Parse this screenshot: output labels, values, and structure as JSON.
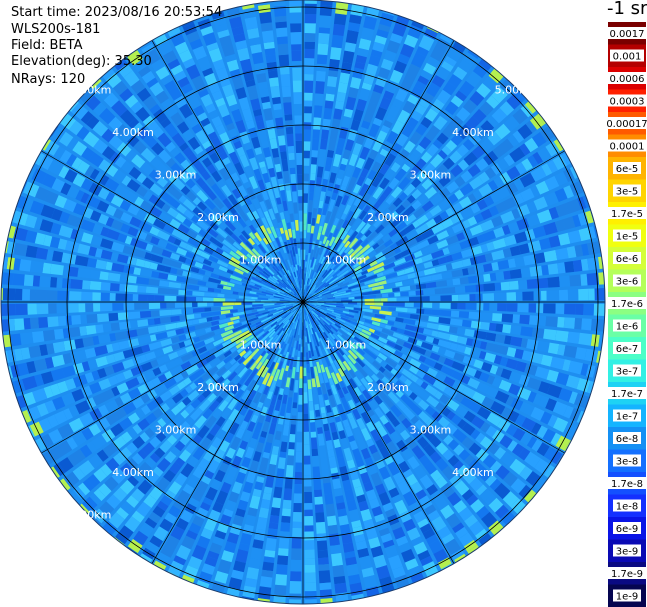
{
  "header": {
    "start_time": "Start time: 2023/08/16 20:53:54",
    "instrument": "WLS200s-181",
    "field": "Field: BETA",
    "elevation": "Elevation(deg): 35.30",
    "nrays": "NRays: 120"
  },
  "unit_label": "-1 sr",
  "range_ring_labels": [
    "1.00km",
    "2.00km",
    "3.00km",
    "4.00km",
    "5.00km"
  ],
  "colorbar": {
    "labels": [
      "0.0017",
      "0.001",
      "0.0006",
      "0.0003",
      "0.00017",
      "0.0001",
      "6e-5",
      "3e-5",
      "1.7e-5",
      "1e-5",
      "6e-6",
      "3e-6",
      "1.7e-6",
      "1e-6",
      "6e-7",
      "3e-7",
      "1.7e-7",
      "1e-7",
      "6e-8",
      "3e-8",
      "1.7e-8",
      "1e-8",
      "6e-9",
      "3e-9",
      "1.7e-9",
      "1e-9"
    ],
    "colors": [
      "#7a0000",
      "#b40000",
      "#dc0000",
      "#ff2000",
      "#ff5a00",
      "#ff8c00",
      "#ffb400",
      "#ffd400",
      "#fff000",
      "#f0ff10",
      "#d4ff38",
      "#b4ff5a",
      "#8cff82",
      "#6affa6",
      "#4cffc8",
      "#32f0e4",
      "#1ed2f4",
      "#14b4ff",
      "#1490f4",
      "#1470ff",
      "#1450ff",
      "#1430ff",
      "#0a14e6",
      "#0a0ab4",
      "#0a0a82",
      "#050550"
    ]
  },
  "colors": {
    "background": "#1e90ee",
    "ring_highlight": "#a0f078"
  }
}
